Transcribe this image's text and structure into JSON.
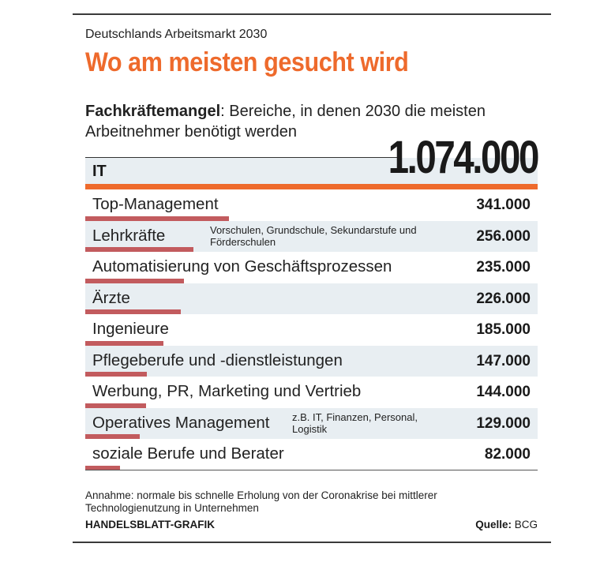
{
  "kicker": "Deutschlands Arbeitsmarkt 2030",
  "headline": "Wo am meisten gesucht wird",
  "subtitle_bold": "Fachkräftemangel",
  "subtitle_rest": ": Bereiche, in denen 2030 die meisten Arbeitnehmer benötigt werden",
  "colors": {
    "accent": "#ee6a2c",
    "bar": "#c25b5e",
    "shade": "#e8eef2"
  },
  "chart_data": {
    "type": "bar",
    "orientation": "horizontal",
    "top": {
      "category": "IT",
      "value": 1074000,
      "value_label": "1.074.000"
    },
    "categories": [
      "Top-Management",
      "Lehrkräfte",
      "Automatisierung von Geschäftsprozessen",
      "Ärzte",
      "Ingenieure",
      "Pflegeberufe und -dienstleistungen",
      "Werbung, PR, Marketing und Vertrieb",
      "Operatives Management",
      "soziale Berufe und Berater"
    ],
    "notes": [
      "",
      "Vorschulen, Grundschule, Sekundarstufe und Förderschulen",
      "",
      "",
      "",
      "",
      "",
      "z.B. IT, Finanzen, Personal, Logistik",
      ""
    ],
    "values": [
      341000,
      256000,
      235000,
      226000,
      185000,
      147000,
      144000,
      129000,
      82000
    ],
    "value_labels": [
      "341.000",
      "256.000",
      "235.000",
      "226.000",
      "185.000",
      "147.000",
      "144.000",
      "129.000",
      "82.000"
    ],
    "xlim": [
      0,
      1074000
    ]
  },
  "footnote": "Annahme: normale bis schnelle Erholung von der Coronakrise bei mittlerer Technologienutzung in Unternehmen",
  "credit": "HANDELSBLATT-GRAFIK",
  "source_label": "Quelle:",
  "source_value": " BCG"
}
